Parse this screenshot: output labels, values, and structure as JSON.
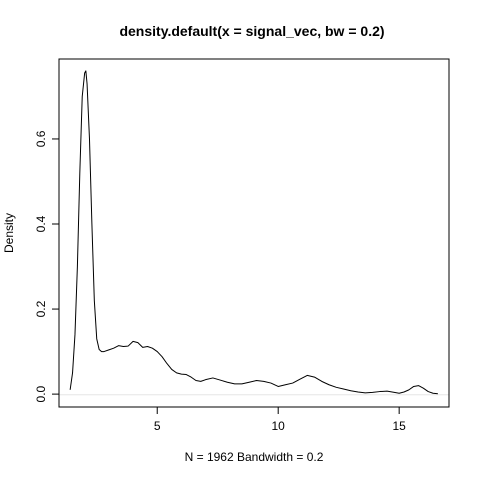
{
  "chart_data": {
    "type": "line",
    "title": "density.default(x = signal_vec, bw = 0.2)",
    "xlabel": "N = 1962   Bandwidth = 0.2",
    "ylabel": "Density",
    "xlim": [
      0.94,
      17.06
    ],
    "ylim": [
      -0.0303,
      0.788
    ],
    "xticks": [
      5,
      10,
      15
    ],
    "xtick_labels": [
      "5",
      "10",
      "15"
    ],
    "yticks": [
      0.0,
      0.2,
      0.4,
      0.6
    ],
    "ytick_labels": [
      "0.0",
      "0.2",
      "0.4",
      "0.6"
    ],
    "grid": false,
    "zero_line": true,
    "series": [
      {
        "x": [
          1.4,
          1.5,
          1.6,
          1.7,
          1.8,
          1.9,
          2.0,
          2.05,
          2.1,
          2.2,
          2.3,
          2.4,
          2.5,
          2.6,
          2.7,
          2.8,
          3.0,
          3.2,
          3.4,
          3.6,
          3.8,
          4.0,
          4.2,
          4.4,
          4.6,
          4.8,
          5.0,
          5.2,
          5.4,
          5.6,
          5.8,
          6.0,
          6.2,
          6.4,
          6.6,
          6.8,
          7.0,
          7.3,
          7.6,
          7.9,
          8.2,
          8.5,
          8.8,
          9.1,
          9.4,
          9.7,
          10.0,
          10.3,
          10.6,
          10.9,
          11.2,
          11.5,
          11.8,
          12.1,
          12.4,
          12.7,
          13.0,
          13.3,
          13.6,
          13.9,
          14.2,
          14.5,
          14.8,
          15.0,
          15.2,
          15.4,
          15.6,
          15.8,
          16.0,
          16.2,
          16.4,
          16.6
        ],
        "y": [
          0.01,
          0.05,
          0.14,
          0.3,
          0.52,
          0.7,
          0.755,
          0.76,
          0.73,
          0.6,
          0.4,
          0.22,
          0.13,
          0.105,
          0.1,
          0.1,
          0.104,
          0.108,
          0.114,
          0.112,
          0.113,
          0.124,
          0.121,
          0.11,
          0.112,
          0.108,
          0.1,
          0.088,
          0.072,
          0.058,
          0.05,
          0.047,
          0.046,
          0.04,
          0.032,
          0.03,
          0.034,
          0.038,
          0.033,
          0.028,
          0.024,
          0.024,
          0.028,
          0.032,
          0.03,
          0.026,
          0.018,
          0.022,
          0.026,
          0.035,
          0.044,
          0.04,
          0.03,
          0.022,
          0.016,
          0.012,
          0.008,
          0.005,
          0.003,
          0.004,
          0.006,
          0.007,
          0.004,
          0.002,
          0.005,
          0.01,
          0.018,
          0.02,
          0.014,
          0.006,
          0.002,
          0.001
        ]
      }
    ]
  }
}
